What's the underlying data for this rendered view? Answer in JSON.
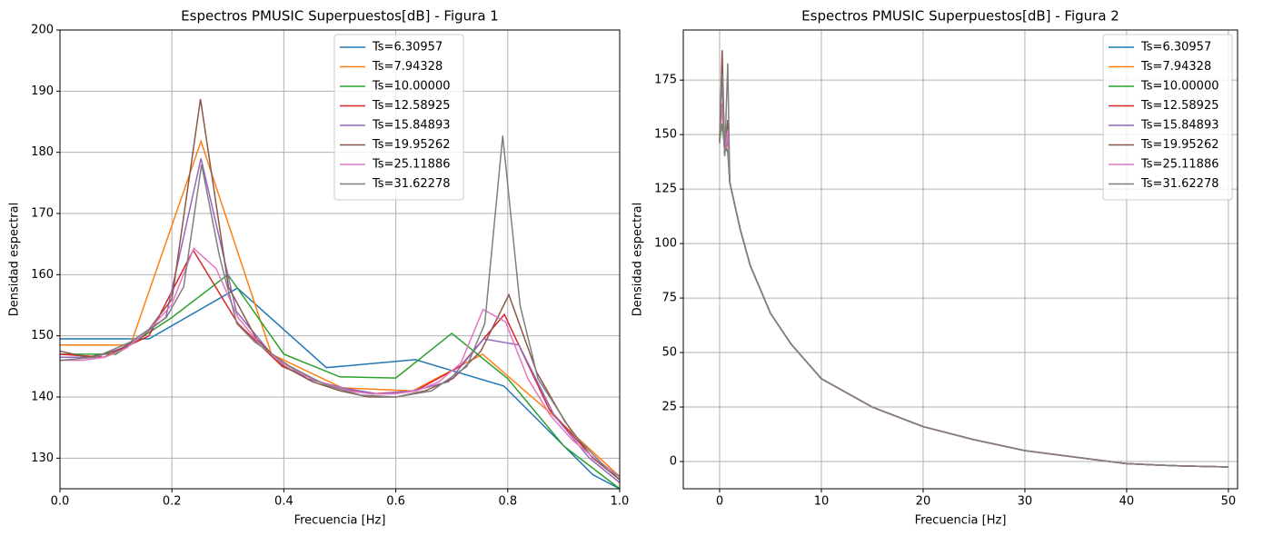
{
  "chart_data": [
    {
      "type": "line",
      "title": "Espectros PMUSIC Superpuestos[dB] - Figura 1",
      "xlabel": "Frecuencia [Hz]",
      "ylabel": "Densidad espectral",
      "xlim": [
        0,
        1
      ],
      "ylim": [
        125,
        200
      ],
      "xticks": [
        {
          "value": 0,
          "label": "0.0"
        },
        0.2,
        0.4,
        0.6,
        0.8,
        {
          "value": 1,
          "label": "1.0"
        }
      ],
      "yticks": [
        130,
        140,
        150,
        160,
        170,
        180,
        190,
        200
      ],
      "grid": true,
      "legend": "upper center",
      "series": [
        {
          "name": "Ts=6.30957",
          "color": "#1f77b4",
          "x": [
            0,
            0.159,
            0.317,
            0.476,
            0.635,
            0.793,
            0.952,
            1.0
          ],
          "values": [
            149.5,
            149.5,
            157.8,
            144.8,
            146.1,
            141.8,
            127.3,
            125
          ]
        },
        {
          "name": "Ts=7.94328",
          "color": "#ff7f0e",
          "x": [
            0,
            0.126,
            0.252,
            0.378,
            0.504,
            0.63,
            0.755,
            0.881,
            1.0
          ],
          "values": [
            148.5,
            148.5,
            181.8,
            147,
            141.5,
            141,
            147,
            137,
            127
          ]
        },
        {
          "name": "Ts=10.00000",
          "color": "#2ca02c",
          "x": [
            0,
            0.1,
            0.2,
            0.3,
            0.4,
            0.5,
            0.6,
            0.7,
            0.8,
            0.9,
            1.0
          ],
          "values": [
            147,
            147,
            153,
            160,
            147,
            143.3,
            143.1,
            150.4,
            143,
            132,
            125
          ]
        },
        {
          "name": "Ts=12.58925",
          "color": "#d62728",
          "x": [
            0,
            0.079,
            0.159,
            0.238,
            0.318,
            0.397,
            0.477,
            0.556,
            0.635,
            0.715,
            0.794,
            0.874,
            0.953,
            1.0
          ],
          "values": [
            147,
            146.5,
            150,
            164,
            152,
            145,
            142,
            140.5,
            141,
            145,
            153.5,
            138,
            130,
            126.5
          ]
        },
        {
          "name": "Ts=15.84893",
          "color": "#9467bd",
          "x": [
            0,
            0.063,
            0.126,
            0.189,
            0.252,
            0.315,
            0.378,
            0.441,
            0.505,
            0.568,
            0.631,
            0.694,
            0.757,
            0.82,
            0.883,
            0.946,
            1.0
          ],
          "values": [
            146.5,
            146.5,
            148.5,
            153,
            179,
            154,
            147,
            143,
            141.5,
            140.5,
            141,
            142.5,
            149.5,
            148.5,
            137,
            130,
            126
          ]
        },
        {
          "name": "Ts=19.95262",
          "color": "#8c564b",
          "x": [
            0,
            0.05,
            0.1,
            0.15,
            0.2,
            0.251,
            0.301,
            0.351,
            0.401,
            0.451,
            0.501,
            0.551,
            0.601,
            0.652,
            0.702,
            0.752,
            0.802,
            0.852,
            0.902,
            0.952,
            1.0
          ],
          "values": [
            147.5,
            146.5,
            147.5,
            150,
            156,
            188.7,
            158,
            149.5,
            145,
            142.5,
            141,
            140,
            140,
            141,
            143,
            147.5,
            156.7,
            144,
            136,
            130,
            126.5
          ]
        },
        {
          "name": "Ts=25.11886",
          "color": "#e377c2",
          "x": [
            0,
            0.04,
            0.08,
            0.119,
            0.159,
            0.199,
            0.239,
            0.279,
            0.318,
            0.358,
            0.398,
            0.438,
            0.478,
            0.517,
            0.557,
            0.597,
            0.637,
            0.677,
            0.716,
            0.756,
            0.796,
            0.836,
            0.876,
            0.915,
            0.955,
            1.0
          ],
          "values": [
            146,
            146,
            146.5,
            148,
            151,
            155,
            164.3,
            161,
            153,
            148.5,
            145.5,
            143.5,
            142,
            141,
            140.5,
            140.5,
            141,
            142.5,
            145.5,
            154.3,
            152.3,
            143,
            137,
            133,
            130,
            127
          ]
        },
        {
          "name": "Ts=31.62278",
          "color": "#7f7f7f",
          "x": [
            0,
            0.063,
            0.126,
            0.19,
            0.221,
            0.253,
            0.285,
            0.316,
            0.348,
            0.411,
            0.474,
            0.538,
            0.601,
            0.664,
            0.727,
            0.759,
            0.791,
            0.822,
            0.854,
            0.917,
            0.98,
            1.0
          ],
          "values": [
            146,
            146.5,
            149,
            153,
            158,
            178,
            163,
            152,
            149,
            145,
            142,
            140.3,
            140,
            141,
            145,
            152,
            182.7,
            155,
            143,
            134,
            128,
            127
          ]
        }
      ]
    },
    {
      "type": "line",
      "title": "Espectros PMUSIC Superpuestos[dB] - Figura 2",
      "xlabel": "Frecuencia [Hz]",
      "ylabel": "Densidad espectral",
      "xlim": [
        -3.57,
        50.9
      ],
      "ylim": [
        -12.5,
        198
      ],
      "xticks": [
        0,
        10,
        20,
        30,
        40,
        50
      ],
      "yticks": [
        0,
        25,
        50,
        75,
        100,
        125,
        150,
        175
      ],
      "grid": true,
      "legend": "upper right",
      "x": [
        0,
        0.25,
        0.5,
        0.8,
        1,
        2,
        3,
        5,
        7,
        10,
        15,
        20,
        25,
        30,
        35,
        40,
        45,
        50
      ],
      "series": [
        {
          "name": "Ts=6.30957",
          "color": "#1f77b4",
          "values": [
            149.5,
            155,
            145,
            142,
            128,
            107,
            90,
            68,
            54,
            38,
            25,
            16,
            10,
            5,
            2,
            -1,
            -2,
            -2.5
          ]
        },
        {
          "name": "Ts=7.94328",
          "color": "#ff7f0e",
          "values": [
            148.5,
            181.8,
            141,
            147,
            128,
            107,
            90,
            68,
            54,
            38,
            25,
            16,
            10,
            5,
            2,
            -1,
            -2,
            -2.5
          ]
        },
        {
          "name": "Ts=10.00000",
          "color": "#2ca02c",
          "values": [
            147,
            155,
            143,
            143,
            128,
            107,
            90,
            68,
            54,
            38,
            25,
            16,
            10,
            5,
            2,
            -1,
            -2,
            -2.5
          ]
        },
        {
          "name": "Ts=12.58925",
          "color": "#d62728",
          "values": [
            147,
            164,
            141,
            153.5,
            128,
            107,
            90,
            68,
            54,
            38,
            25,
            16,
            10,
            5,
            2,
            -1,
            -2,
            -2.5
          ]
        },
        {
          "name": "Ts=15.84893",
          "color": "#9467bd",
          "values": [
            146.5,
            179,
            141.5,
            149,
            128,
            107,
            90,
            68,
            54,
            38,
            25,
            16,
            10,
            5,
            2,
            -1,
            -2,
            -2.5
          ]
        },
        {
          "name": "Ts=19.95262",
          "color": "#8c564b",
          "values": [
            147.5,
            188.7,
            141,
            156.7,
            128,
            107,
            90,
            68,
            54,
            38,
            25,
            16,
            10,
            5,
            2,
            -1,
            -2,
            -2.5
          ]
        },
        {
          "name": "Ts=25.11886",
          "color": "#e377c2",
          "values": [
            146,
            164.3,
            141,
            152,
            128,
            107,
            90,
            68,
            54,
            38,
            25,
            16,
            10,
            5,
            2,
            -1,
            -2,
            -2.5
          ]
        },
        {
          "name": "Ts=31.62278",
          "color": "#7f7f7f",
          "values": [
            146,
            178,
            140,
            182.7,
            128,
            107,
            90,
            68,
            54,
            38,
            25,
            16,
            10,
            5,
            2,
            -1,
            -2,
            -2.5
          ]
        }
      ]
    }
  ]
}
